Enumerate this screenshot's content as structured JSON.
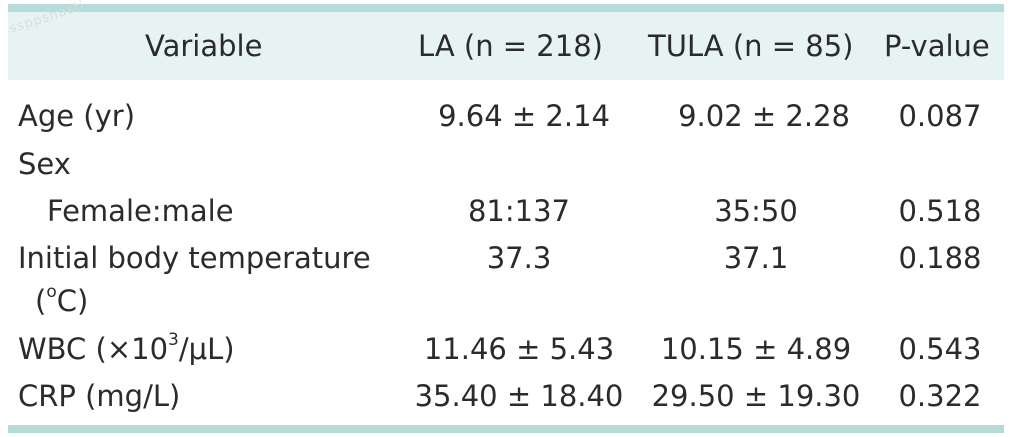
{
  "watermark": "ssppsnasti",
  "header": {
    "variable": "Variable",
    "la": "LA (n = 218)",
    "tula": "TULA (n = 85)",
    "pvalue": "P-value"
  },
  "rows": [
    {
      "variable": "Age (yr)",
      "la": "9.64 ± 2.14",
      "tula": "9.02 ± 2.28",
      "p": "0.087"
    },
    {
      "variable": "Sex",
      "la": "",
      "tula": "",
      "p": ""
    },
    {
      "variable": "Female:male",
      "la": "81:137",
      "tula": "35:50",
      "p": "0.518"
    },
    {
      "variable": "Initial body temperature",
      "variable_line2_pre": "(",
      "variable_line2_sup": "o",
      "variable_line2_post": "C)",
      "la": "37.3",
      "tula": "37.1",
      "p": "0.188"
    },
    {
      "variable_pre": "WBC (×10",
      "variable_sup": "3",
      "variable_post": "/μL)",
      "la": "11.46 ± 5.43",
      "tula": "10.15 ± 4.89",
      "p": "0.543"
    },
    {
      "variable": "CRP (mg/L)",
      "la": "35.40 ± 18.40",
      "tula": "29.50 ± 19.30",
      "p": "0.322"
    }
  ]
}
